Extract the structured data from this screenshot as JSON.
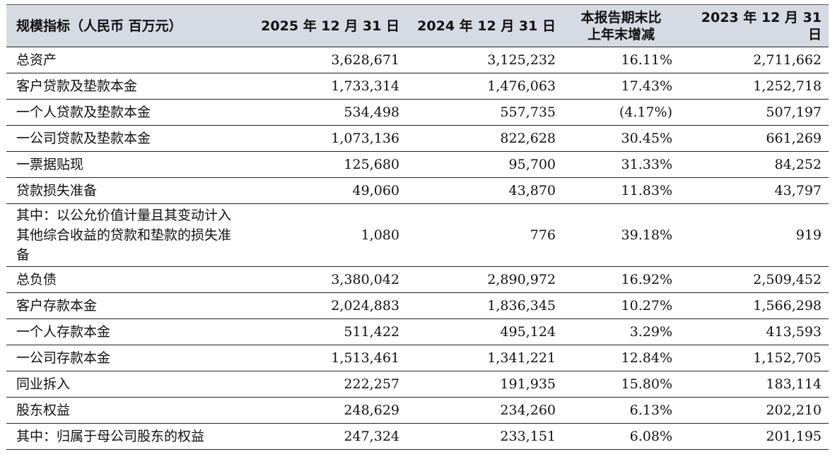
{
  "table": {
    "headers": [
      "规模指标（人民币 百万元）",
      "2025 年 12 月 31 日",
      "2024 年 12 月 31 日",
      "本报告期末比\n上年末增减",
      "2023 年 12 月 31 日"
    ],
    "header_change_line1": "本报告期末比",
    "header_change_line2": "上年末增减",
    "rows": [
      {
        "label": "总资产",
        "v2025": "3,628,671",
        "v2024": "3,125,232",
        "change": "16.11%",
        "v2023": "2,711,662"
      },
      {
        "label": "客户贷款及垫款本金",
        "v2025": "1,733,314",
        "v2024": "1,476,063",
        "change": "17.43%",
        "v2023": "1,252,718"
      },
      {
        "label": "一个人贷款及垫款本金",
        "v2025": "534,498",
        "v2024": "557,735",
        "change": "(4.17%)",
        "v2023": "507,197"
      },
      {
        "label": "一公司贷款及垫款本金",
        "v2025": "1,073,136",
        "v2024": "822,628",
        "change": "30.45%",
        "v2023": "661,269"
      },
      {
        "label": "一票据贴现",
        "v2025": "125,680",
        "v2024": "95,700",
        "change": "31.33%",
        "v2023": "84,252"
      },
      {
        "label": "贷款损失准备",
        "v2025": "49,060",
        "v2024": "43,870",
        "change": "11.83%",
        "v2023": "43,797"
      },
      {
        "label": "其中：以公允价值计量且其变动计入其他综合收益的贷款和垫款的损失准备",
        "v2025": "1,080",
        "v2024": "776",
        "change": "39.18%",
        "v2023": "919"
      },
      {
        "label": "总负债",
        "v2025": "3,380,042",
        "v2024": "2,890,972",
        "change": "16.92%",
        "v2023": "2,509,452"
      },
      {
        "label": "客户存款本金",
        "v2025": "2,024,883",
        "v2024": "1,836,345",
        "change": "10.27%",
        "v2023": "1,566,298"
      },
      {
        "label": "一个人存款本金",
        "v2025": "511,422",
        "v2024": "495,124",
        "change": "3.29%",
        "v2023": "413,593"
      },
      {
        "label": "一公司存款本金",
        "v2025": "1,513,461",
        "v2024": "1,341,221",
        "change": "12.84%",
        "v2023": "1,152,705"
      },
      {
        "label": "同业拆入",
        "v2025": "222,257",
        "v2024": "191,935",
        "change": "15.80%",
        "v2023": "183,114"
      },
      {
        "label": "股东权益",
        "v2025": "248,629",
        "v2024": "234,260",
        "change": "6.13%",
        "v2023": "202,210"
      },
      {
        "label": "其中：归属于母公司股东的权益",
        "v2025": "247,324",
        "v2024": "233,151",
        "change": "6.08%",
        "v2023": "201,195"
      }
    ]
  },
  "colors": {
    "header_bg": "#d6dae2",
    "rule": "#222222"
  }
}
